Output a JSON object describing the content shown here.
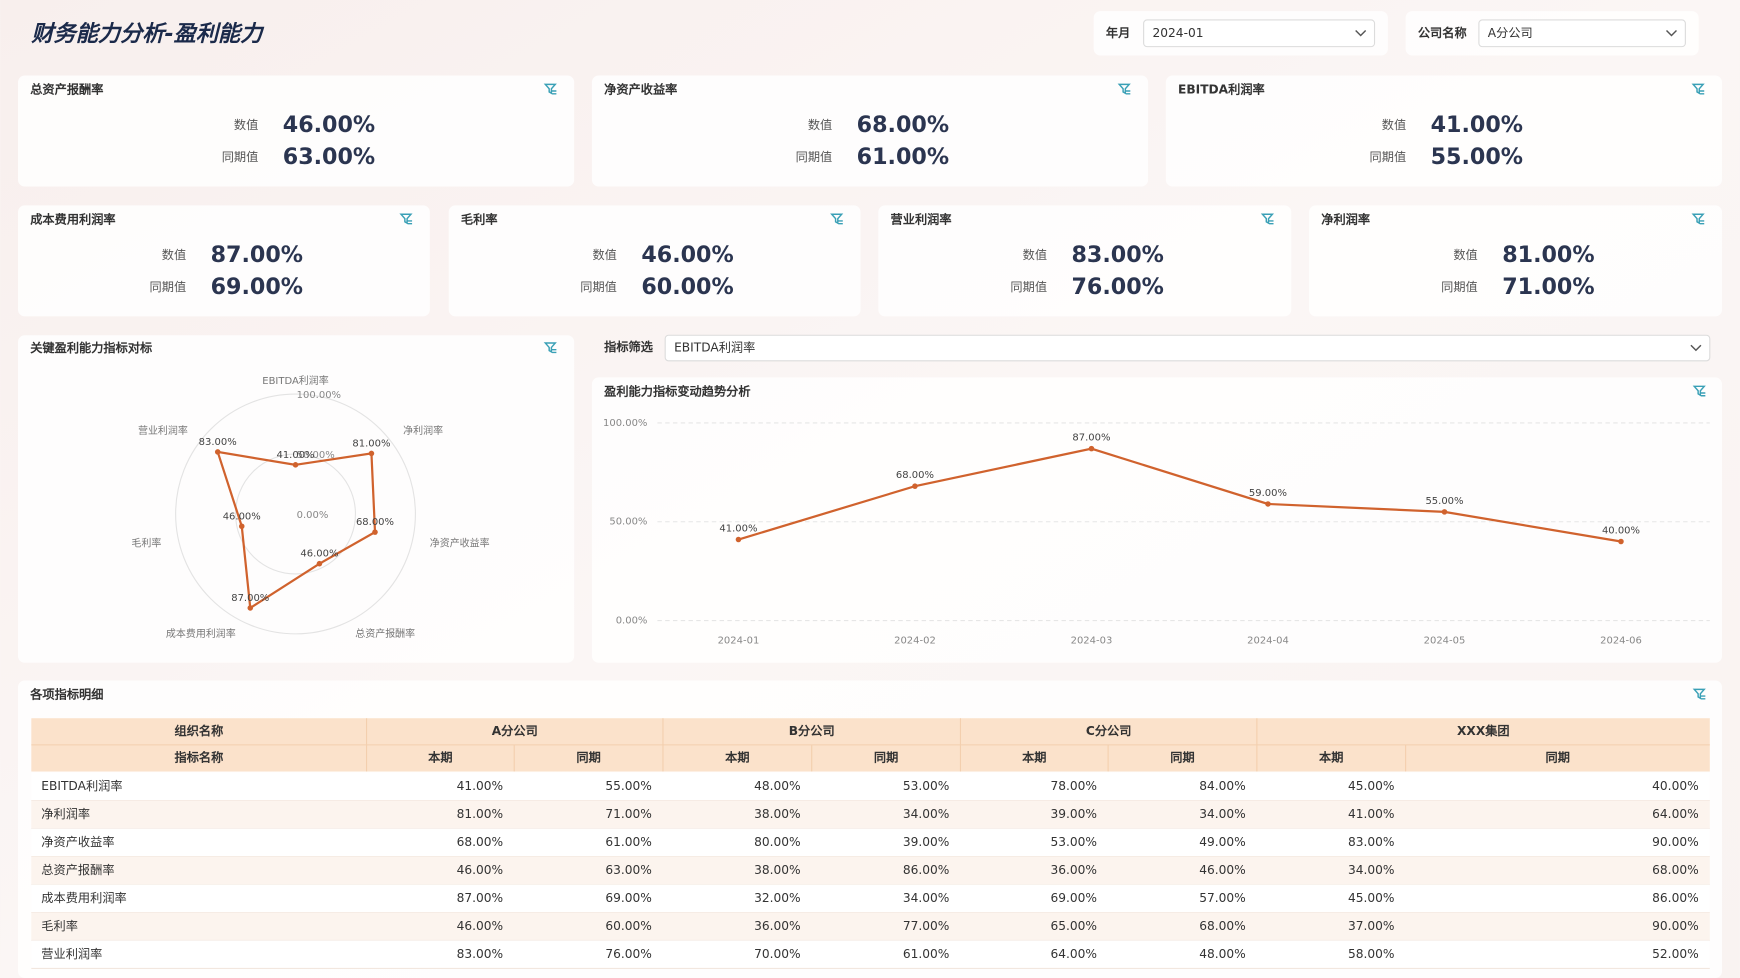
{
  "header": {
    "title": "财务能力分析-盈利能力",
    "filters": [
      {
        "label": "年月",
        "value": "2024-01"
      },
      {
        "label": "公司名称",
        "value": "A分公司"
      }
    ]
  },
  "kpis": [
    {
      "title": "总资产报酬率",
      "value_label": "数值",
      "value": "46.00%",
      "prior_label": "同期值",
      "prior": "63.00%"
    },
    {
      "title": "净资产收益率",
      "value_label": "数值",
      "value": "68.00%",
      "prior_label": "同期值",
      "prior": "61.00%"
    },
    {
      "title": "EBITDA利润率",
      "value_label": "数值",
      "value": "41.00%",
      "prior_label": "同期值",
      "prior": "55.00%"
    },
    {
      "title": "成本费用利润率",
      "value_label": "数值",
      "value": "87.00%",
      "prior_label": "同期值",
      "prior": "69.00%"
    },
    {
      "title": "毛利率",
      "value_label": "数值",
      "value": "46.00%",
      "prior_label": "同期值",
      "prior": "60.00%"
    },
    {
      "title": "营业利润率",
      "value_label": "数值",
      "value": "83.00%",
      "prior_label": "同期值",
      "prior": "76.00%"
    },
    {
      "title": "净利润率",
      "value_label": "数值",
      "value": "81.00%",
      "prior_label": "同期值",
      "prior": "71.00%"
    }
  ],
  "radar_chart": {
    "type": "radar",
    "title": "关键盈利能力指标对标",
    "categories": [
      "EBITDA利润率",
      "净利润率",
      "净资产收益率",
      "总资产报酬率",
      "成本费用利润率",
      "毛利率",
      "营业利润率"
    ],
    "values": [
      41,
      81,
      68,
      46,
      87,
      46,
      83
    ],
    "value_labels": [
      "41.00%",
      "81.00%",
      "68.00%",
      "46.00%",
      "87.00%",
      "46.00%",
      "83.00%"
    ],
    "color": "#d0622d",
    "rlim": [
      0,
      100
    ],
    "rticks": [
      {
        "value": 0,
        "label": "0.00%"
      },
      {
        "value": 50,
        "label": "50.00%"
      },
      {
        "value": 100,
        "label": "100.00%"
      }
    ]
  },
  "indicator_filter": {
    "label": "指标筛选",
    "value": "EBITDA利润率"
  },
  "trend_chart": {
    "type": "line",
    "title": "盈利能力指标变动趋势分析",
    "categories": [
      "2024-01",
      "2024-02",
      "2024-03",
      "2024-04",
      "2024-05",
      "2024-06"
    ],
    "values": [
      41,
      68,
      87,
      59,
      55,
      40
    ],
    "value_labels": [
      "41.00%",
      "68.00%",
      "87.00%",
      "59.00%",
      "55.00%",
      "40.00%"
    ],
    "color": "#d0622d",
    "ylim": [
      0,
      100
    ],
    "yticks": [
      {
        "value": 0,
        "label": "0.00%"
      },
      {
        "value": 50,
        "label": "50.00%"
      },
      {
        "value": 100,
        "label": "100.00%"
      }
    ],
    "grid": true
  },
  "table": {
    "title": "各项指标明细",
    "header_groups": [
      "组织名称",
      "A分公司",
      "B分公司",
      "C分公司",
      "XXX集团"
    ],
    "header_columns": [
      "指标名称",
      "本期",
      "同期",
      "本期",
      "同期",
      "本期",
      "同期",
      "本期",
      "同期"
    ],
    "rows": [
      [
        "EBITDA利润率",
        "41.00%",
        "55.00%",
        "48.00%",
        "53.00%",
        "78.00%",
        "84.00%",
        "45.00%",
        "40.00%"
      ],
      [
        "净利润率",
        "81.00%",
        "71.00%",
        "38.00%",
        "34.00%",
        "39.00%",
        "34.00%",
        "41.00%",
        "64.00%"
      ],
      [
        "净资产收益率",
        "68.00%",
        "61.00%",
        "80.00%",
        "39.00%",
        "53.00%",
        "49.00%",
        "83.00%",
        "90.00%"
      ],
      [
        "总资产报酬率",
        "46.00%",
        "63.00%",
        "38.00%",
        "86.00%",
        "36.00%",
        "46.00%",
        "34.00%",
        "68.00%"
      ],
      [
        "成本费用利润率",
        "87.00%",
        "69.00%",
        "32.00%",
        "34.00%",
        "69.00%",
        "57.00%",
        "45.00%",
        "86.00%"
      ],
      [
        "毛利率",
        "46.00%",
        "60.00%",
        "36.00%",
        "77.00%",
        "65.00%",
        "68.00%",
        "37.00%",
        "90.00%"
      ],
      [
        "营业利润率",
        "83.00%",
        "76.00%",
        "70.00%",
        "61.00%",
        "64.00%",
        "48.00%",
        "58.00%",
        "52.00%"
      ]
    ]
  }
}
